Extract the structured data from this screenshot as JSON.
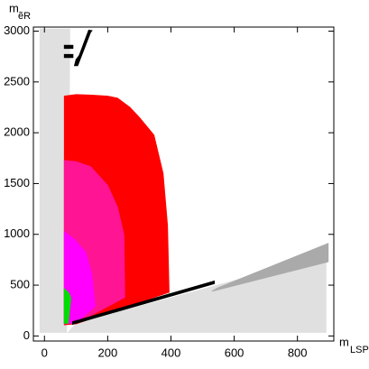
{
  "chart_data": {
    "type": "region",
    "x_label": {
      "main": "m",
      "sub": "LSP"
    },
    "y_label": {
      "main": "m",
      "sub": "ẽR"
    },
    "xlim": [
      -35,
      915
    ],
    "ylim": [
      -50,
      3040
    ],
    "xticks": [
      0,
      200,
      400,
      600,
      800
    ],
    "yticks": [
      0,
      500,
      1000,
      1500,
      2000,
      2500,
      3000
    ],
    "regions": [
      {
        "color": "#e0e0e0",
        "x": [
          -14,
          80,
          78,
          70,
          70,
          -14
        ],
        "y": [
          3020,
          3020,
          2000,
          1000,
          36,
          36
        ]
      },
      {
        "color": "#e0e0e0",
        "x": [
          75,
          890,
          890,
          100
        ],
        "y": [
          36,
          36,
          790,
          120
        ]
      },
      {
        "color": "#aaaaaa",
        "x": [
          546,
          897,
          897,
          530
        ],
        "y": [
          470,
          910,
          730,
          440
        ]
      },
      {
        "color": "#ff0000",
        "x": [
          63,
          63,
          100,
          150,
          200,
          231,
          270,
          300,
          346,
          375,
          389,
          394,
          100
        ],
        "y": [
          110,
          2360,
          2375,
          2370,
          2360,
          2340,
          2250,
          2150,
          1977,
          1600,
          1086,
          430,
          120
        ]
      },
      {
        "color": "#ff1493",
        "x": [
          63,
          63,
          100,
          146,
          200,
          231,
          251,
          254,
          100
        ],
        "y": [
          120,
          1727,
          1715,
          1665,
          1480,
          1265,
          997,
          380,
          125
        ]
      },
      {
        "color": "#ff00ff",
        "x": [
          63,
          63,
          95,
          131,
          150,
          160,
          100
        ],
        "y": [
          125,
          1024,
          950,
          819,
          600,
          290,
          130
        ]
      },
      {
        "color": "#00dd00",
        "x": [
          63,
          63,
          77,
          83,
          75
        ],
        "y": [
          125,
          463,
          420,
          374,
          125
        ]
      },
      {
        "color": "#000000",
        "x": [
          89,
          537,
          537,
          89
        ],
        "y": [
          115,
          515,
          540,
          140
        ]
      },
      {
        "color": "#000000",
        "x": [
          95,
          105,
          146,
          150,
          140,
          110,
          100
        ],
        "y": [
          2660,
          2660,
          2990,
          3005,
          3010,
          2760,
          2720
        ]
      },
      {
        "color": "#000000",
        "x": [
          63,
          90,
          90,
          63
        ],
        "y": [
          2830,
          2830,
          2860,
          2860
        ]
      },
      {
        "color": "#000000",
        "x": [
          63,
          90,
          90,
          63
        ],
        "y": [
          2740,
          2740,
          2770,
          2770
        ]
      }
    ]
  }
}
